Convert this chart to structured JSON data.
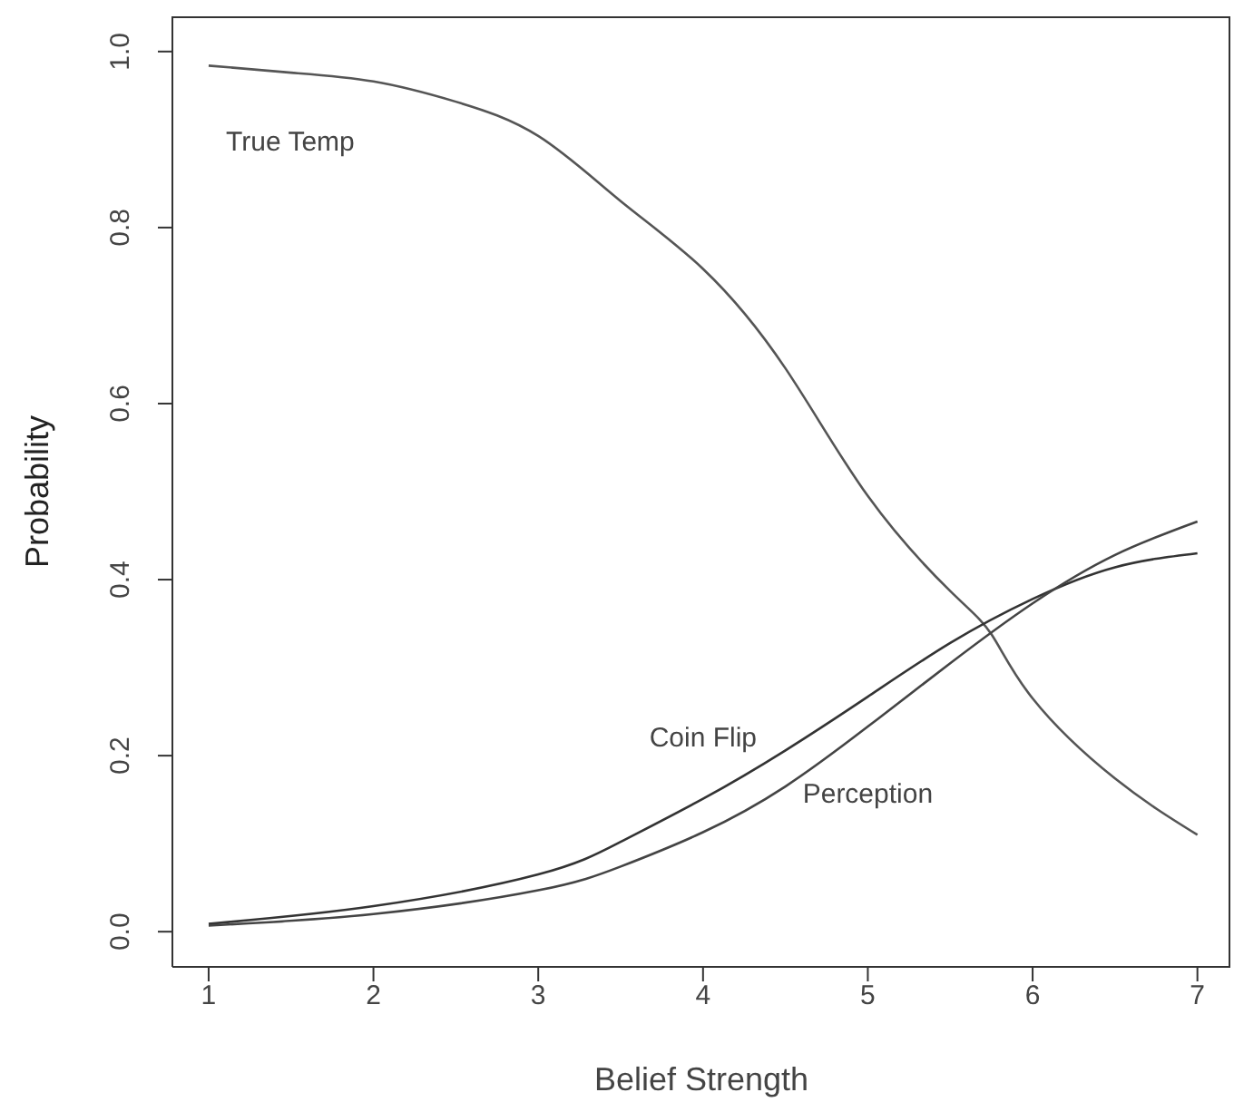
{
  "chart_data": {
    "type": "line",
    "xlabel": "Belief Strength",
    "ylabel": "Probability",
    "xlim": [
      0.78,
      7.2
    ],
    "xticks": [
      1,
      2,
      3,
      4,
      5,
      6,
      7
    ],
    "ylim": [
      -0.04,
      1.04
    ],
    "yticks": [
      {
        "value": 0,
        "label": "0.0"
      },
      0.2,
      0.4,
      0.6,
      0.8,
      {
        "value": 1,
        "label": "1.0"
      }
    ],
    "grid": false,
    "legend": false,
    "marker": "none",
    "line_style": "solid",
    "series": [
      {
        "name": "True Temp",
        "color": "#555555",
        "x": [
          1,
          1.5,
          2,
          2.5,
          3,
          3.5,
          4,
          4.5,
          5,
          5.5,
          5.75,
          6,
          6.5,
          7
        ],
        "values": [
          0.984,
          0.976,
          0.966,
          0.943,
          0.904,
          0.83,
          0.753,
          0.64,
          0.495,
          0.387,
          0.338,
          0.265,
          0.174,
          0.11
        ]
      },
      {
        "name": "Coin Flip",
        "color": "#333333",
        "x": [
          1,
          2,
          3,
          3.5,
          4,
          4.5,
          5,
          5.5,
          6,
          6.5,
          7
        ],
        "values": [
          0.009,
          0.029,
          0.065,
          0.102,
          0.151,
          0.206,
          0.267,
          0.328,
          0.378,
          0.414,
          0.43
        ]
      },
      {
        "name": "Perception",
        "color": "#444444",
        "x": [
          1,
          2,
          3,
          3.5,
          4,
          4.5,
          5,
          5.5,
          6,
          6.5,
          7
        ],
        "values": [
          0.007,
          0.02,
          0.047,
          0.074,
          0.113,
          0.165,
          0.233,
          0.305,
          0.373,
          0.428,
          0.466
        ]
      }
    ]
  }
}
